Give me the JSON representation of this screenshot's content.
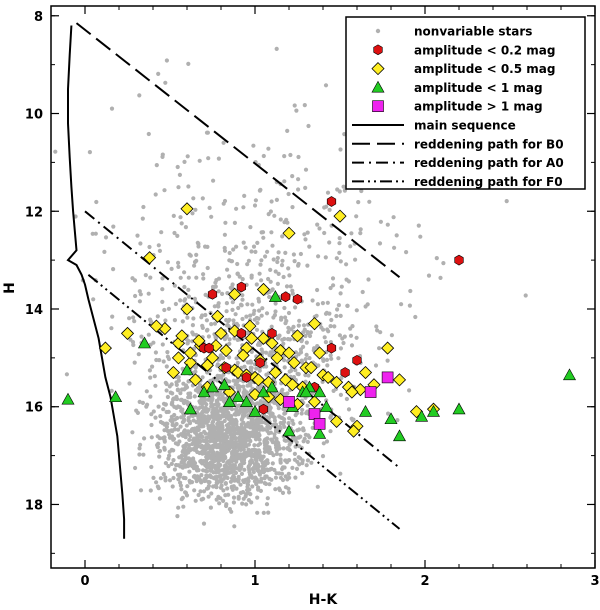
{
  "chart_data": {
    "type": "scatter",
    "title": "",
    "xlabel": "H-K",
    "ylabel": "H",
    "xlim": [
      -0.2,
      3.0
    ],
    "ylim": [
      19.3,
      7.8
    ],
    "y_inverted": true,
    "x_ticks": [
      0,
      1,
      2,
      3
    ],
    "y_ticks": [
      8,
      10,
      12,
      14,
      16,
      18
    ],
    "grid": false,
    "legend_position": "top-right",
    "legend": [
      {
        "label": "nonvariable stars",
        "symbol": "dot",
        "color": "#b0b0b0"
      },
      {
        "label": "amplitude < 0.2 mag",
        "symbol": "hexagon",
        "color": "#dd1111"
      },
      {
        "label": "amplitude < 0.5 mag",
        "symbol": "diamond",
        "color": "#ffee22"
      },
      {
        "label": "amplitude < 1 mag",
        "symbol": "triangle",
        "color": "#22cc22"
      },
      {
        "label": "amplitude > 1 mag",
        "symbol": "square",
        "color": "#ee22ee"
      },
      {
        "label": "main sequence",
        "symbol": "line-solid",
        "color": "#000000"
      },
      {
        "label": "reddening path for B0",
        "symbol": "line-dash",
        "color": "#000000"
      },
      {
        "label": "reddening path for A0",
        "symbol": "line-dashdot",
        "color": "#000000"
      },
      {
        "label": "reddening path for F0",
        "symbol": "line-dashdotdot",
        "color": "#000000"
      }
    ],
    "lines": [
      {
        "name": "main sequence",
        "style": "solid",
        "x": [
          -0.08,
          -0.09,
          -0.1,
          -0.1,
          -0.09,
          -0.08,
          -0.07,
          -0.06,
          -0.05,
          -0.1,
          -0.05,
          -0.02,
          0.0,
          0.02,
          0.05,
          0.08,
          0.1,
          0.12,
          0.15,
          0.17,
          0.19,
          0.2,
          0.21,
          0.22,
          0.23,
          0.23
        ],
        "y": [
          8.2,
          8.8,
          9.5,
          10.2,
          10.9,
          11.5,
          12.0,
          12.4,
          12.8,
          13.0,
          13.1,
          13.3,
          13.5,
          13.8,
          14.2,
          14.6,
          15.0,
          15.4,
          15.8,
          16.2,
          16.6,
          17.0,
          17.4,
          17.8,
          18.3,
          18.7
        ]
      },
      {
        "name": "reddening path for B0",
        "style": "dash",
        "x": [
          -0.05,
          1.85
        ],
        "y": [
          8.15,
          13.35
        ]
      },
      {
        "name": "reddening path for A0",
        "style": "dashdot",
        "x": [
          0.0,
          1.85
        ],
        "y": [
          12.0,
          17.25
        ]
      },
      {
        "name": "reddening path for F0",
        "style": "dashdotdot",
        "x": [
          0.02,
          1.85
        ],
        "y": [
          13.3,
          18.5
        ]
      }
    ],
    "series": [
      {
        "name": "amplitude < 0.2 mag",
        "symbol": "hexagon",
        "color": "#dd1111",
        "x": [
          1.45,
          2.2,
          0.75,
          0.92,
          1.18,
          1.25,
          0.92,
          1.1,
          0.7,
          0.73,
          0.83,
          1.45,
          1.6,
          1.53,
          1.03,
          0.95,
          1.05,
          1.35
        ],
        "y": [
          11.8,
          13.0,
          13.7,
          13.55,
          13.75,
          13.8,
          14.5,
          14.5,
          14.8,
          14.8,
          15.2,
          14.8,
          15.05,
          15.3,
          15.1,
          15.4,
          16.05,
          15.6
        ]
      },
      {
        "name": "amplitude < 0.5 mag",
        "symbol": "diamond",
        "color": "#ffee22",
        "x": [
          0.6,
          1.5,
          1.2,
          0.38,
          0.88,
          1.05,
          0.6,
          0.78,
          0.97,
          1.35,
          0.8,
          1.25,
          1.05,
          0.55,
          0.68,
          0.95,
          1.15,
          1.38,
          1.78,
          1.65,
          1.85,
          1.95,
          2.05,
          0.55,
          0.62,
          0.72,
          0.82,
          0.88,
          0.9,
          0.95,
          1.0,
          1.02,
          1.08,
          1.12,
          1.18,
          1.22,
          1.28,
          1.3,
          1.4,
          1.48,
          1.55,
          1.62,
          1.7,
          0.47,
          0.57,
          0.67,
          0.77,
          0.83,
          0.93,
          1.03,
          1.13,
          1.23,
          1.33,
          1.43,
          1.57,
          1.6,
          0.65,
          0.72,
          0.85,
          1.0,
          1.08,
          1.15,
          1.25,
          1.35,
          1.48,
          1.58,
          0.12,
          0.25,
          0.42,
          0.52,
          0.62,
          0.75,
          0.88,
          0.98,
          1.1,
          1.2
        ],
        "y": [
          11.95,
          12.1,
          12.45,
          12.95,
          13.7,
          13.6,
          14.0,
          14.15,
          14.35,
          14.3,
          14.5,
          14.55,
          14.6,
          14.7,
          14.75,
          14.8,
          14.85,
          14.9,
          14.8,
          15.3,
          15.45,
          16.1,
          16.05,
          15.0,
          15.1,
          15.15,
          15.2,
          15.25,
          15.3,
          15.35,
          15.4,
          15.45,
          15.5,
          15.3,
          15.45,
          15.55,
          15.6,
          15.2,
          15.35,
          15.5,
          15.6,
          15.65,
          15.55,
          14.4,
          14.55,
          14.65,
          14.75,
          14.85,
          14.95,
          15.05,
          15.0,
          15.1,
          15.2,
          15.4,
          15.7,
          16.4,
          15.45,
          15.6,
          15.7,
          15.75,
          15.8,
          15.85,
          15.95,
          15.9,
          16.3,
          16.5,
          14.8,
          14.5,
          14.35,
          15.3,
          14.9,
          15.0,
          14.45,
          14.6,
          14.7,
          14.9
        ]
      },
      {
        "name": "amplitude < 1 mag",
        "symbol": "triangle",
        "color": "#22cc22",
        "x": [
          -0.1,
          0.18,
          0.35,
          0.6,
          0.7,
          0.75,
          0.82,
          0.9,
          1.0,
          1.05,
          1.1,
          1.12,
          1.2,
          1.22,
          1.28,
          1.32,
          1.38,
          1.42,
          0.62,
          0.95,
          1.3,
          1.65,
          1.85,
          1.98,
          2.05,
          2.2,
          2.85,
          1.8,
          0.85,
          1.38
        ],
        "y": [
          15.85,
          15.8,
          14.7,
          15.25,
          15.7,
          15.6,
          15.55,
          15.8,
          16.1,
          15.7,
          15.6,
          13.75,
          16.5,
          16.0,
          15.7,
          15.6,
          15.7,
          16.0,
          16.05,
          15.9,
          15.7,
          16.1,
          16.6,
          16.2,
          16.1,
          16.05,
          15.35,
          16.25,
          15.9,
          16.55
        ]
      },
      {
        "name": "amplitude > 1 mag",
        "symbol": "square",
        "color": "#ee22ee",
        "x": [
          1.2,
          1.35,
          1.38,
          1.68,
          1.78
        ],
        "y": [
          15.9,
          16.15,
          16.35,
          15.7,
          15.4
        ]
      }
    ]
  }
}
